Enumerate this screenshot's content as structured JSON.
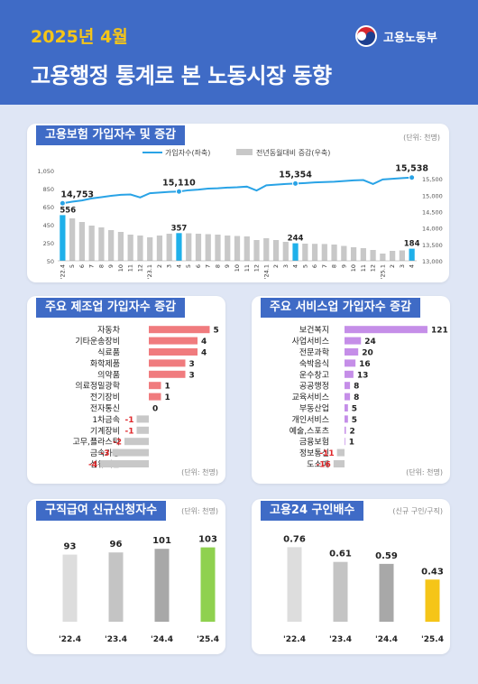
{
  "header": {
    "date": "2025년 4월",
    "title": "고용행정 통계로 본 노동시장 동향",
    "logo_text": "고용노동부"
  },
  "colors": {
    "header_bg": "#3f6bc6",
    "accent_yellow": "#f5c518",
    "line_blue": "#29a3e6",
    "bar_gray": "#c8c8c8",
    "bar_highlight": "#1fb0ea",
    "manufacturing": "#f07b7e",
    "service": "#c58ee8",
    "applicants_highlight": "#8fd14f",
    "ratio_highlight": "#f5c518"
  },
  "chart_data": [
    {
      "id": "insured",
      "type": "bar+line",
      "title": "고용보험 가입자수 및 증감",
      "unit": "(단위: 천명)",
      "legend": [
        "가입자수(좌축)",
        "전년동월대비 증감(우축)"
      ],
      "categories": [
        "'22.4",
        "5",
        "6",
        "7",
        "8",
        "9",
        "10",
        "11",
        "12",
        "'23.1",
        "2",
        "3",
        "4",
        "5",
        "6",
        "7",
        "8",
        "9",
        "10",
        "11",
        "12",
        "'24.1",
        "2",
        "3",
        "4",
        "5",
        "6",
        "7",
        "8",
        "9",
        "10",
        "11",
        "12",
        "'25.1",
        "2",
        "3",
        "4"
      ],
      "series": [
        {
          "name": "가입자수(좌축)",
          "type": "line",
          "axis": "right",
          "values": [
            14753,
            14800,
            14840,
            14900,
            14940,
            14980,
            15010,
            15020,
            14930,
            15060,
            15080,
            15100,
            15110,
            15150,
            15170,
            15200,
            15210,
            15230,
            15240,
            15260,
            15140,
            15300,
            15320,
            15340,
            15354,
            15370,
            15390,
            15400,
            15410,
            15430,
            15450,
            15460,
            15340,
            15480,
            15500,
            15520,
            15538
          ]
        },
        {
          "name": "전년동월대비 증감(우축)",
          "type": "bar",
          "axis": "left",
          "values": [
            556,
            520,
            480,
            440,
            420,
            390,
            370,
            340,
            330,
            310,
            330,
            350,
            357,
            355,
            350,
            345,
            340,
            330,
            325,
            320,
            280,
            300,
            280,
            260,
            244,
            240,
            238,
            236,
            230,
            215,
            200,
            190,
            170,
            130,
            160,
            165,
            184
          ]
        }
      ],
      "highlight_indices": [
        0,
        12,
        24,
        36
      ],
      "value_labels": {
        "line": [
          "14,753",
          "15,110",
          "15,354",
          "15,538"
        ],
        "bar": [
          "556",
          "357",
          "244",
          "184"
        ]
      },
      "left_axis_ticks": [
        "1,050",
        "850",
        "650",
        "450",
        "250",
        "50"
      ],
      "left_ylim": [
        50,
        1050
      ],
      "right_axis_ticks": [
        "15,500",
        "15,000",
        "14,500",
        "14,000",
        "13,500",
        "13,000"
      ],
      "right_ylim": [
        13000,
        15750
      ]
    },
    {
      "id": "manufacturing",
      "type": "bar",
      "orientation": "horizontal",
      "title": "주요 제조업 가입자수 증감",
      "unit": "(단위: 천명)",
      "categories": [
        "자동차",
        "기타운송장비",
        "식료품",
        "화학제품",
        "의약품",
        "의료정밀광학",
        "전기장비",
        "전자통신",
        "1차금속",
        "기계장비",
        "고무,플라스틱",
        "금속가공",
        "섬유제품"
      ],
      "values": [
        5,
        4,
        4,
        3,
        3,
        1,
        1,
        0,
        -1,
        -1,
        -2,
        -3,
        -4
      ],
      "value_labels": [
        "5",
        "4",
        "4",
        "3",
        "3",
        "1",
        "1",
        "0",
        "-1",
        "-1",
        "-2",
        "-3",
        "-4"
      ]
    },
    {
      "id": "service",
      "type": "bar",
      "orientation": "horizontal",
      "title": "주요 서비스업 가입자수 증감",
      "unit": "(단위: 천명)",
      "categories": [
        "보건복지",
        "사업서비스",
        "전문과학",
        "숙박음식",
        "운수창고",
        "공공행정",
        "교육서비스",
        "부동산업",
        "개인서비스",
        "예술,스포츠",
        "금융보험",
        "정보통신",
        "도소매"
      ],
      "values": [
        121,
        24,
        20,
        16,
        13,
        8,
        8,
        5,
        5,
        2,
        1,
        -11,
        -16
      ],
      "value_labels": [
        "121",
        "24",
        "20",
        "16",
        "13",
        "8",
        "8",
        "5",
        "5",
        "2",
        "1",
        "-11",
        "-16"
      ]
    },
    {
      "id": "applicants",
      "type": "bar",
      "title": "구직급여 신규신청자수",
      "unit": "(단위: 천명)",
      "categories": [
        "'22.4",
        "'23.4",
        "'24.4",
        "'25.4"
      ],
      "values": [
        93,
        96,
        101,
        103
      ],
      "value_labels": [
        "93",
        "96",
        "101",
        "103"
      ]
    },
    {
      "id": "ratio",
      "type": "bar",
      "title": "고용24 구인배수",
      "unit": "(신규 구인/구직)",
      "categories": [
        "'22.4",
        "'23.4",
        "'24.4",
        "'25.4"
      ],
      "values": [
        0.76,
        0.61,
        0.59,
        0.43
      ],
      "value_labels": [
        "0.76",
        "0.61",
        "0.59",
        "0.43"
      ]
    }
  ]
}
